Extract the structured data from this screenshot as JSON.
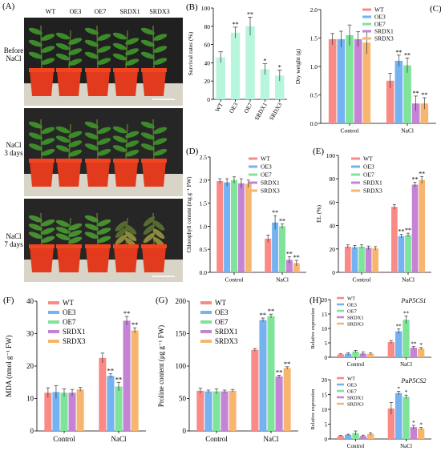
{
  "colors": {
    "WT": "#f98a86",
    "OE3": "#74b2f2",
    "OE7": "#7fe39a",
    "SRDX1": "#c583d5",
    "SRDX3": "#f7b670",
    "survival_bar": "#b8f5dd"
  },
  "panel_a": {
    "label": "(A)",
    "genotypes": [
      "WT",
      "OE3",
      "OE7",
      "SRDX1",
      "SRDX3"
    ],
    "rows": [
      {
        "label": "Before\nNaCl"
      },
      {
        "label": "NaCl\n3 days"
      },
      {
        "label": "NaCl\n7 days"
      }
    ]
  },
  "chart_data": [
    {
      "id": "B",
      "panel_label": "(B)",
      "type": "bar",
      "ylabel": "Survival rates (%)",
      "ylim": [
        0,
        100
      ],
      "yticks": [
        0,
        20,
        40,
        60,
        80,
        100
      ],
      "categories": [
        "WT",
        "OE3",
        "OE7",
        "SRDX1",
        "SRDX3"
      ],
      "values": [
        46,
        73,
        80,
        33,
        26
      ],
      "errors": [
        6,
        6,
        10,
        6,
        6
      ],
      "sig": [
        "",
        "**",
        "**",
        "*",
        "*"
      ]
    },
    {
      "id": "C",
      "panel_label": "(C)",
      "type": "bar",
      "ylabel": "Dry weight (g)",
      "ylim": [
        0,
        2.0
      ],
      "yticks": [
        0,
        0.5,
        1.0,
        1.5,
        2.0
      ],
      "tick_decimals": 1,
      "categories": [
        "Control",
        "NaCl"
      ],
      "series": [
        {
          "name": "WT",
          "values": [
            1.48,
            0.75
          ],
          "errors": [
            0.1,
            0.13
          ],
          "sig": [
            "",
            ""
          ]
        },
        {
          "name": "OE3",
          "values": [
            1.48,
            1.1
          ],
          "errors": [
            0.14,
            0.1
          ],
          "sig": [
            "",
            "**"
          ]
        },
        {
          "name": "OE7",
          "values": [
            1.55,
            1.02
          ],
          "errors": [
            0.18,
            0.13
          ],
          "sig": [
            "",
            "**"
          ]
        },
        {
          "name": "SRDX1",
          "values": [
            1.48,
            0.35
          ],
          "errors": [
            0.13,
            0.13
          ],
          "sig": [
            "",
            "**"
          ]
        },
        {
          "name": "SRDX3",
          "values": [
            1.42,
            0.35
          ],
          "errors": [
            0.2,
            0.1
          ],
          "sig": [
            "",
            "**"
          ]
        }
      ]
    },
    {
      "id": "D",
      "panel_label": "(D)",
      "type": "bar",
      "ylabel": "Chlorophyll content (mg g⁻¹ FW)",
      "ylim": [
        0,
        2.5
      ],
      "yticks": [
        0,
        0.5,
        1.0,
        1.5,
        2.0,
        2.5
      ],
      "tick_decimals": 1,
      "categories": [
        "Control",
        "NaCl"
      ],
      "series": [
        {
          "name": "WT",
          "values": [
            1.98,
            0.73
          ],
          "errors": [
            0.05,
            0.08
          ],
          "sig": [
            "",
            ""
          ]
        },
        {
          "name": "OE3",
          "values": [
            1.95,
            1.08
          ],
          "errors": [
            0.08,
            0.15
          ],
          "sig": [
            "",
            "**"
          ]
        },
        {
          "name": "OE7",
          "values": [
            2.0,
            1.0
          ],
          "errors": [
            0.07,
            0.05
          ],
          "sig": [
            "",
            "**"
          ]
        },
        {
          "name": "SRDX1",
          "values": [
            1.93,
            0.27
          ],
          "errors": [
            0.1,
            0.07
          ],
          "sig": [
            "",
            "**"
          ]
        },
        {
          "name": "SRDX3",
          "values": [
            1.92,
            0.2
          ],
          "errors": [
            0.08,
            0.06
          ],
          "sig": [
            "",
            "**"
          ]
        }
      ]
    },
    {
      "id": "E",
      "panel_label": "(E)",
      "type": "bar",
      "ylabel": "EL (%)",
      "ylim": [
        0,
        100
      ],
      "yticks": [
        0,
        20,
        40,
        60,
        80,
        100
      ],
      "categories": [
        "Control",
        "NaCl"
      ],
      "series": [
        {
          "name": "WT",
          "values": [
            22,
            56
          ],
          "errors": [
            1.5,
            2
          ],
          "sig": [
            "",
            ""
          ]
        },
        {
          "name": "OE3",
          "values": [
            21.5,
            31
          ],
          "errors": [
            1.5,
            1.5
          ],
          "sig": [
            "",
            "**"
          ]
        },
        {
          "name": "OE7",
          "values": [
            22,
            32
          ],
          "errors": [
            1.5,
            1.5
          ],
          "sig": [
            "",
            "**"
          ]
        },
        {
          "name": "SRDX1",
          "values": [
            21,
            75
          ],
          "errors": [
            1.5,
            2
          ],
          "sig": [
            "",
            "**"
          ]
        },
        {
          "name": "SRDX3",
          "values": [
            20.5,
            79
          ],
          "errors": [
            1.5,
            3
          ],
          "sig": [
            "",
            "**"
          ]
        }
      ]
    },
    {
      "id": "F",
      "panel_label": "(F)",
      "type": "bar",
      "ylabel": "MDA (nmol g⁻¹ FW)",
      "ylim": [
        0,
        40
      ],
      "yticks": [
        0,
        10,
        20,
        30,
        40
      ],
      "categories": [
        "Control",
        "NaCl"
      ],
      "series": [
        {
          "name": "WT",
          "values": [
            11.8,
            22.5
          ],
          "errors": [
            1.5,
            1.5
          ],
          "sig": [
            "",
            ""
          ]
        },
        {
          "name": "OE3",
          "values": [
            12.0,
            17.0
          ],
          "errors": [
            2.0,
            0.6
          ],
          "sig": [
            "",
            "**"
          ]
        },
        {
          "name": "OE7",
          "values": [
            11.8,
            13.7
          ],
          "errors": [
            1.2,
            1.3
          ],
          "sig": [
            "",
            "**"
          ]
        },
        {
          "name": "SRDX1",
          "values": [
            11.8,
            34.0
          ],
          "errors": [
            1.0,
            1.3
          ],
          "sig": [
            "",
            "**"
          ]
        },
        {
          "name": "SRDX3",
          "values": [
            12.8,
            31.0
          ],
          "errors": [
            0.6,
            0.8
          ],
          "sig": [
            "",
            "**"
          ]
        }
      ]
    },
    {
      "id": "G",
      "panel_label": "(G)",
      "type": "bar",
      "ylabel": "Proline content (μg g⁻¹ FW)",
      "ylim": [
        0,
        200
      ],
      "yticks": [
        0,
        50,
        100,
        150,
        200
      ],
      "categories": [
        "Control",
        "NaCl"
      ],
      "series": [
        {
          "name": "WT",
          "values": [
            62,
            125
          ],
          "errors": [
            4,
            2
          ],
          "sig": [
            "",
            ""
          ]
        },
        {
          "name": "OE3",
          "values": [
            61,
            171
          ],
          "errors": [
            2,
            3
          ],
          "sig": [
            "",
            "**"
          ]
        },
        {
          "name": "OE7",
          "values": [
            61,
            177
          ],
          "errors": [
            4,
            3
          ],
          "sig": [
            "",
            "**"
          ]
        },
        {
          "name": "SRDX1",
          "values": [
            61,
            84
          ],
          "errors": [
            2,
            2
          ],
          "sig": [
            "",
            "**"
          ]
        },
        {
          "name": "SRDX3",
          "values": [
            62,
            97
          ],
          "errors": [
            2,
            2
          ],
          "sig": [
            "",
            "**"
          ]
        }
      ]
    },
    {
      "id": "H1",
      "panel_label": "(H)",
      "type": "bar",
      "title": "PuP5CS1",
      "ylabel": "Relative expression",
      "ylim": [
        0,
        20
      ],
      "yticks": [
        0,
        5,
        10,
        15,
        20
      ],
      "categories": [
        "Control",
        "NaCl"
      ],
      "series": [
        {
          "name": "WT",
          "values": [
            1.0,
            5.3
          ],
          "errors": [
            0.2,
            0.5
          ],
          "sig": [
            "",
            ""
          ]
        },
        {
          "name": "OE3",
          "values": [
            1.2,
            9.0
          ],
          "errors": [
            0.4,
            0.8
          ],
          "sig": [
            "",
            "**"
          ]
        },
        {
          "name": "OE7",
          "values": [
            2.0,
            13.0
          ],
          "errors": [
            0.4,
            1.3
          ],
          "sig": [
            "",
            "**"
          ]
        },
        {
          "name": "SRDX1",
          "values": [
            1.3,
            3.3
          ],
          "errors": [
            0.6,
            0.4
          ],
          "sig": [
            "",
            "**"
          ]
        },
        {
          "name": "SRDX3",
          "values": [
            1.2,
            3.0
          ],
          "errors": [
            0.3,
            0.4
          ],
          "sig": [
            "",
            "*"
          ]
        }
      ]
    },
    {
      "id": "H2",
      "panel_label": "",
      "type": "bar",
      "title": "PuP5CS2",
      "ylabel": "Relative expression",
      "ylim": [
        0,
        20
      ],
      "yticks": [
        0,
        5,
        10,
        15,
        20
      ],
      "categories": [
        "Control",
        "NaCl"
      ],
      "series": [
        {
          "name": "WT",
          "values": [
            1.0,
            10.3
          ],
          "errors": [
            0.2,
            2.0
          ],
          "sig": [
            "",
            ""
          ]
        },
        {
          "name": "OE3",
          "values": [
            1.4,
            15.5
          ],
          "errors": [
            0.2,
            0.6
          ],
          "sig": [
            "",
            "*"
          ]
        },
        {
          "name": "OE7",
          "values": [
            2.0,
            14.2
          ],
          "errors": [
            0.7,
            0.6
          ],
          "sig": [
            "",
            "*"
          ]
        },
        {
          "name": "SRDX1",
          "values": [
            1.0,
            4.0
          ],
          "errors": [
            0.3,
            0.6
          ],
          "sig": [
            "",
            "*"
          ]
        },
        {
          "name": "SRDX3",
          "values": [
            1.7,
            3.5
          ],
          "errors": [
            0.4,
            0.4
          ],
          "sig": [
            "",
            "*"
          ]
        }
      ]
    }
  ]
}
